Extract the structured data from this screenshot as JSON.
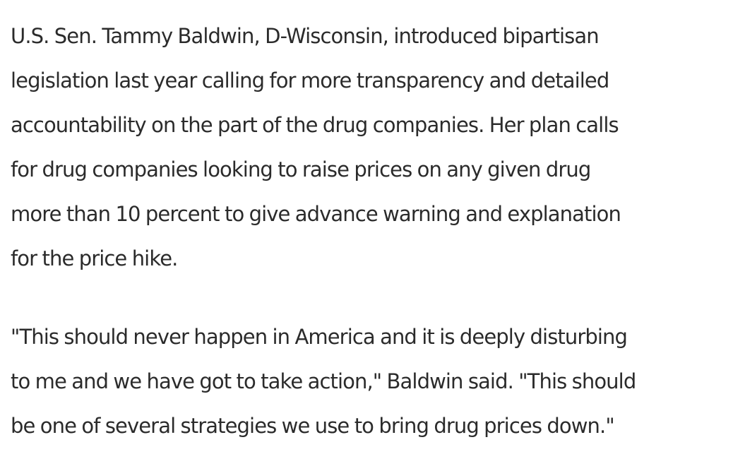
{
  "article": {
    "paragraphs": [
      {
        "lines": [
          "U.S. Sen. Tammy Baldwin, D-Wisconsin, introduced bipartisan",
          "legislation last year calling for more transparency and detailed",
          "accountability on the part of the drug companies. Her plan calls",
          "for drug companies looking to raise prices on any given drug",
          "more than 10 percent to give advance warning and explanation",
          "for the price hike."
        ]
      },
      {
        "lines": [
          "\"This should never happen in America and it is deeply disturbing",
          "to me and we have got to take action,\" Baldwin said. \"This should",
          "be one of several strategies we use to bring drug prices down.\""
        ]
      }
    ]
  }
}
